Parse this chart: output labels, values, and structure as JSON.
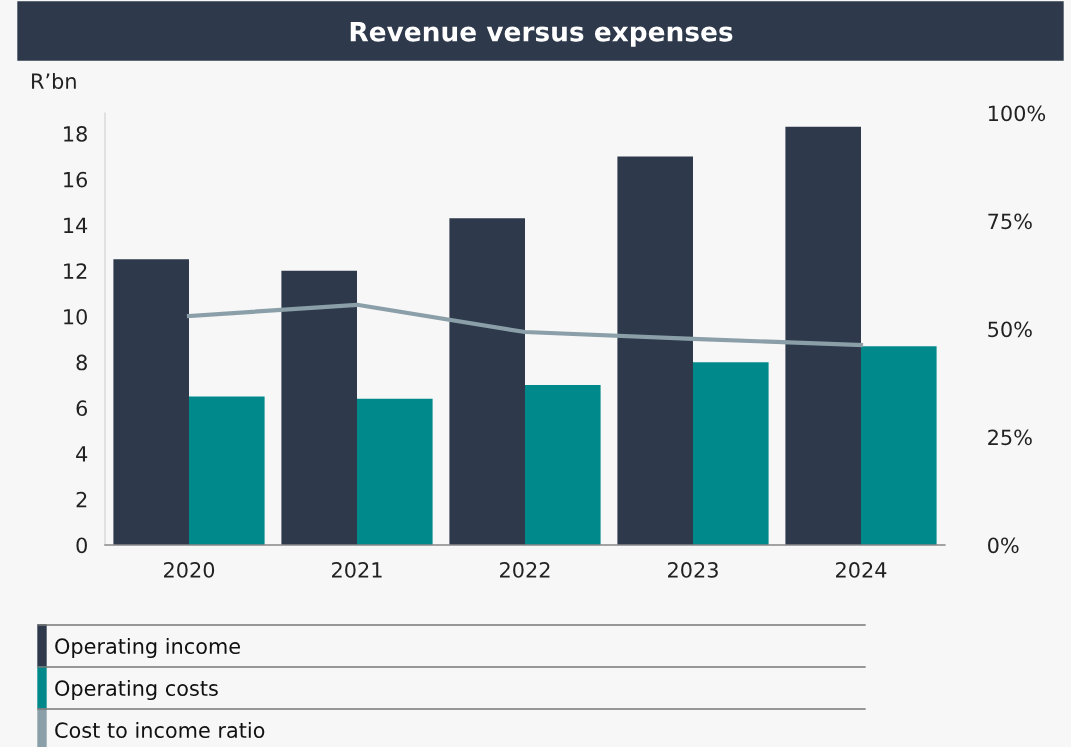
{
  "chart_data": {
    "type": "bar",
    "title": "Revenue versus expenses",
    "ylabel": "R’bn",
    "categories": [
      "2020",
      "2021",
      "2022",
      "2023",
      "2024"
    ],
    "series": [
      {
        "name": "Operating income",
        "color": "#2e3a4b",
        "values": [
          12.5,
          12.0,
          14.3,
          17.0,
          18.3
        ]
      },
      {
        "name": "Operating costs",
        "color": "#00898a",
        "values": [
          6.5,
          6.4,
          7.0,
          8.0,
          8.7
        ]
      },
      {
        "name": "Cost to income ratio",
        "type": "line",
        "axis": "y2",
        "color": "#8a9fa8",
        "values": [
          53,
          55.6,
          49.3,
          47.7,
          46.3
        ]
      }
    ],
    "ylim": [
      0,
      18.9
    ],
    "yticks": [
      0,
      2,
      4,
      6,
      8,
      10,
      12,
      14,
      16,
      18
    ],
    "y2lim": [
      0,
      100
    ],
    "y2ticks": [
      {
        "value": 0,
        "label": "0%"
      },
      {
        "value": 25,
        "label": "25%"
      },
      {
        "value": 50,
        "label": "50%"
      },
      {
        "value": 75,
        "label": "75%"
      },
      {
        "value": 100,
        "label": "100%"
      }
    ],
    "grid": false,
    "legend": "bottom",
    "marker": "none"
  }
}
